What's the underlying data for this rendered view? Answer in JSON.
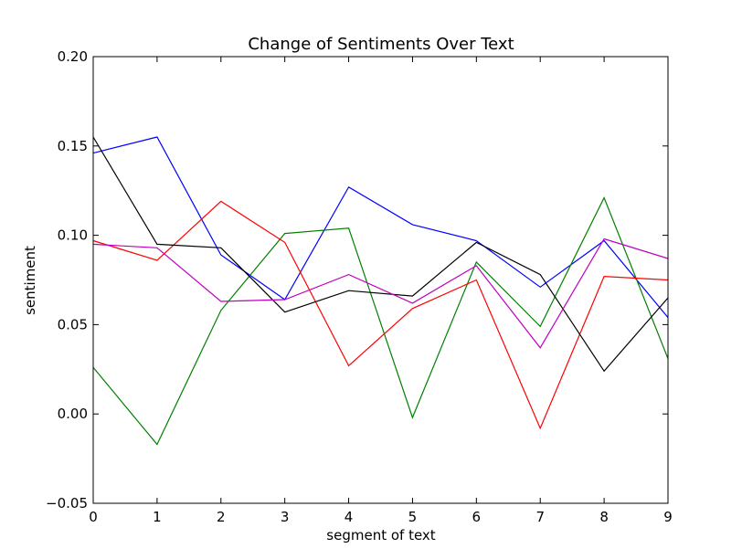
{
  "chart_data": {
    "type": "line",
    "title": "Change of Sentiments Over Text",
    "xlabel": "segment of text",
    "ylabel": "sentiment",
    "xlim": [
      0,
      9
    ],
    "ylim": [
      -0.05,
      0.2
    ],
    "x": [
      0,
      1,
      2,
      3,
      4,
      5,
      6,
      7,
      8,
      9
    ],
    "x_ticks": [
      "0",
      "1",
      "2",
      "3",
      "4",
      "5",
      "6",
      "7",
      "8",
      "9"
    ],
    "y_ticks": [
      -0.05,
      0.0,
      0.05,
      0.1,
      0.15,
      0.2
    ],
    "y_tick_labels": [
      "−0.05",
      "0.00",
      "0.05",
      "0.10",
      "0.15",
      "0.20"
    ],
    "grid": false,
    "series": [
      {
        "color": "#0000ff",
        "values": [
          0.146,
          0.155,
          0.089,
          0.064,
          0.127,
          0.106,
          0.097,
          0.071,
          0.097,
          0.054
        ]
      },
      {
        "color": "#008000",
        "values": [
          0.026,
          -0.017,
          0.058,
          0.101,
          0.104,
          -0.002,
          0.085,
          0.049,
          0.121,
          0.031
        ]
      },
      {
        "color": "#ff0000",
        "values": [
          0.097,
          0.086,
          0.119,
          0.096,
          0.027,
          0.059,
          0.075,
          -0.008,
          0.077,
          0.075
        ]
      },
      {
        "color": "#000000",
        "values": [
          0.155,
          0.095,
          0.093,
          0.057,
          0.069,
          0.066,
          0.096,
          0.078,
          0.024,
          0.065
        ]
      },
      {
        "color": "#bf00bf",
        "values": [
          0.095,
          0.093,
          0.063,
          0.064,
          0.078,
          0.062,
          0.083,
          0.037,
          0.098,
          0.087
        ]
      }
    ]
  }
}
